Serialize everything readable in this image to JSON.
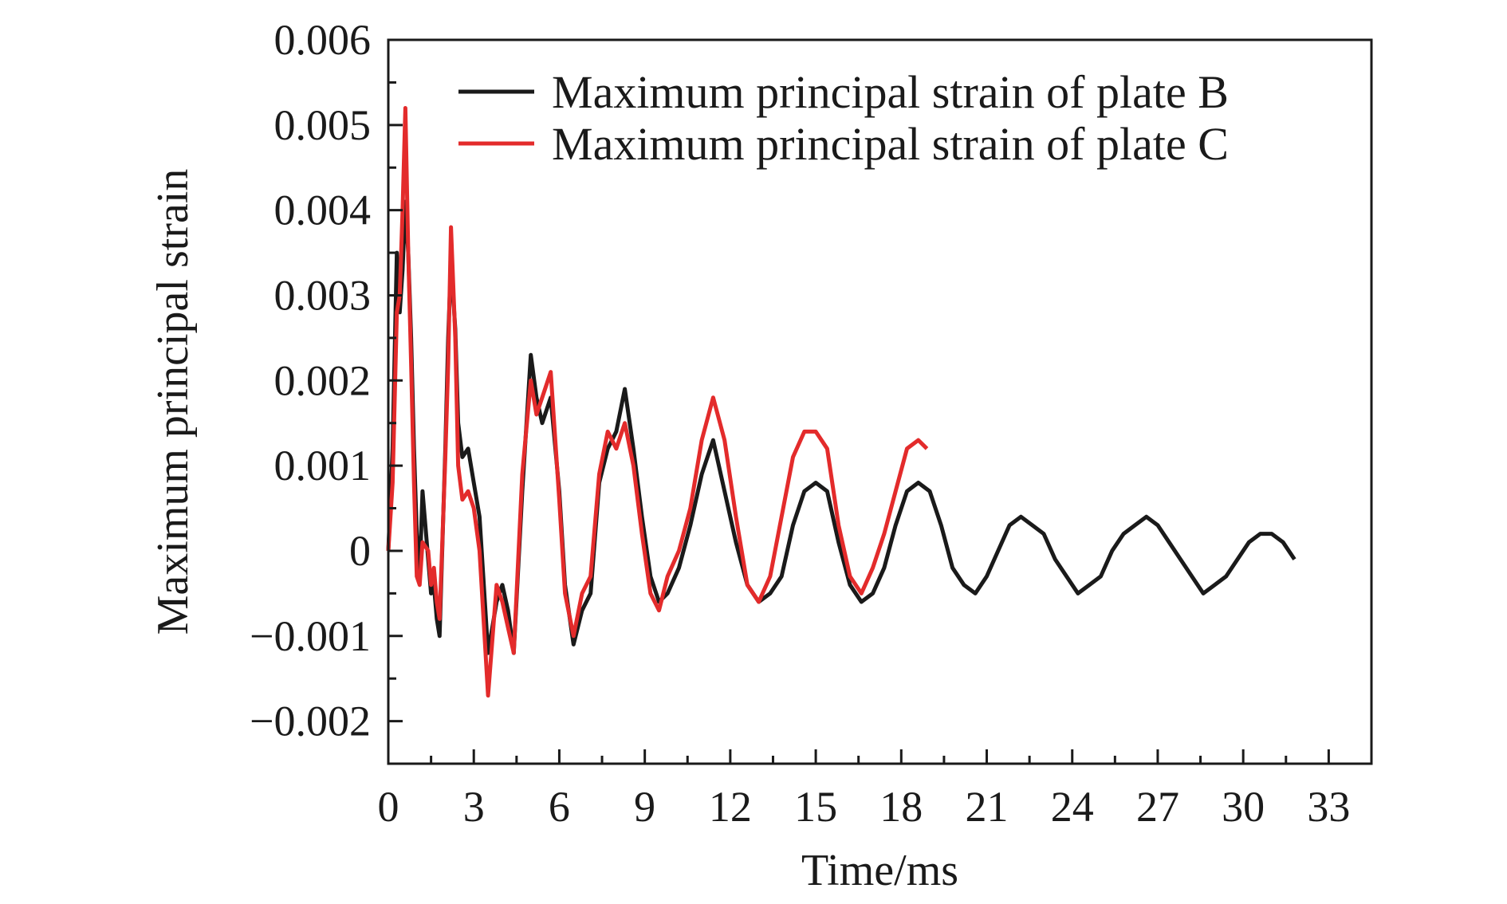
{
  "chart_data": {
    "type": "line",
    "title": "",
    "xlabel": "Time/ms",
    "ylabel": "Maximum principal strain",
    "xlim": [
      0,
      33
    ],
    "ylim": [
      -0.0025,
      0.006
    ],
    "xticks": [
      0,
      3,
      6,
      9,
      12,
      15,
      18,
      21,
      24,
      27,
      30,
      33
    ],
    "xtick_labels": [
      "0",
      "3",
      "6",
      "9",
      "12",
      "15",
      "18",
      "21",
      "24",
      "27",
      "30",
      "33"
    ],
    "yticks": [
      -0.002,
      -0.001,
      0,
      0.001,
      0.002,
      0.003,
      0.004,
      0.005,
      0.006
    ],
    "ytick_labels": [
      "−0.002",
      "−0.001",
      "0",
      "0.001",
      "0.002",
      "0.003",
      "0.004",
      "0.005",
      "0.006"
    ],
    "grid": false,
    "legend_position": "top-right",
    "series": [
      {
        "name": "Maximum principal strain of plate B",
        "color": "#1a1a1a",
        "x": [
          0,
          0.15,
          0.3,
          0.4,
          0.5,
          0.6,
          0.7,
          0.8,
          0.9,
          1.0,
          1.1,
          1.2,
          1.4,
          1.5,
          1.6,
          1.7,
          1.8,
          2.0,
          2.1,
          2.2,
          2.35,
          2.45,
          2.6,
          2.8,
          3.0,
          3.2,
          3.5,
          3.8,
          4.0,
          4.2,
          4.4,
          4.7,
          5.0,
          5.2,
          5.4,
          5.7,
          6.0,
          6.2,
          6.5,
          6.8,
          7.1,
          7.4,
          7.7,
          8.0,
          8.3,
          8.6,
          8.9,
          9.2,
          9.5,
          9.8,
          10.2,
          10.6,
          11.0,
          11.4,
          11.8,
          12.2,
          12.6,
          13.0,
          13.4,
          13.8,
          14.2,
          14.6,
          15.0,
          15.4,
          15.8,
          16.2,
          16.6,
          17.0,
          17.4,
          17.8,
          18.2,
          18.6,
          19.0,
          19.4,
          19.8,
          20.2,
          20.6,
          21.0,
          21.4,
          21.8,
          22.2,
          22.6,
          23.0,
          23.4,
          23.8,
          24.2,
          24.6,
          25.0,
          25.4,
          25.8,
          26.2,
          26.6,
          27.0,
          27.4,
          27.8,
          28.2,
          28.6,
          29.0,
          29.4,
          29.8,
          30.2,
          30.6,
          31.0,
          31.4,
          31.8
        ],
        "y": [
          0,
          0.0012,
          0.0035,
          0.0028,
          0.0033,
          0.0041,
          0.0035,
          0.0025,
          0.0012,
          0.0002,
          -0.0003,
          0.0007,
          -0.0001,
          -0.0005,
          -0.0004,
          -0.0008,
          -0.001,
          0.0012,
          0.0025,
          0.0034,
          0.0026,
          0.0015,
          0.0011,
          0.0012,
          0.0008,
          0.0004,
          -0.0012,
          -0.0006,
          -0.0004,
          -0.0007,
          -0.0012,
          0.0007,
          0.0023,
          0.0018,
          0.0015,
          0.0018,
          0.0007,
          -0.0004,
          -0.0011,
          -0.0007,
          -0.0005,
          0.0008,
          0.0012,
          0.0014,
          0.0019,
          0.0012,
          0.0004,
          -0.0003,
          -0.0006,
          -0.0005,
          -0.0002,
          0.0003,
          0.0009,
          0.0013,
          0.0007,
          0.0001,
          -0.0004,
          -0.0006,
          -0.0005,
          -0.0003,
          0.0003,
          0.0007,
          0.0008,
          0.0007,
          0.0001,
          -0.0004,
          -0.0006,
          -0.0005,
          -0.0002,
          0.0003,
          0.0007,
          0.0008,
          0.0007,
          0.0003,
          -0.0002,
          -0.0004,
          -0.0005,
          -0.0003,
          0.0,
          0.0003,
          0.0004,
          0.0003,
          0.0002,
          -0.0001,
          -0.0003,
          -0.0005,
          -0.0004,
          -0.0003,
          0.0,
          0.0002,
          0.0003,
          0.0004,
          0.0003,
          0.0001,
          -0.0001,
          -0.0003,
          -0.0005,
          -0.0004,
          -0.0003,
          -0.0001,
          0.0001,
          0.0002,
          0.0002,
          0.0001,
          -0.0001
        ]
      },
      {
        "name": "Maximum principal strain of plate C",
        "color": "#e32b2b",
        "x": [
          0,
          0.15,
          0.3,
          0.4,
          0.5,
          0.6,
          0.7,
          0.8,
          0.9,
          1.0,
          1.1,
          1.2,
          1.4,
          1.5,
          1.6,
          1.7,
          1.8,
          2.0,
          2.1,
          2.2,
          2.35,
          2.45,
          2.6,
          2.8,
          3.0,
          3.2,
          3.5,
          3.8,
          4.0,
          4.2,
          4.4,
          4.7,
          5.0,
          5.2,
          5.4,
          5.7,
          6.0,
          6.2,
          6.5,
          6.8,
          7.1,
          7.4,
          7.7,
          8.0,
          8.3,
          8.6,
          8.9,
          9.2,
          9.5,
          9.8,
          10.2,
          10.6,
          11.0,
          11.4,
          11.8,
          12.2,
          12.6,
          13.0,
          13.4,
          13.8,
          14.2,
          14.6,
          15.0,
          15.4,
          15.8,
          16.2,
          16.6,
          17.0,
          17.4,
          17.8,
          18.2,
          18.6,
          18.9
        ],
        "y": [
          0,
          0.0008,
          0.0028,
          0.003,
          0.004,
          0.0052,
          0.0035,
          0.0022,
          0.0008,
          -0.0003,
          -0.0004,
          0.0001,
          0.0,
          -0.0004,
          -0.0002,
          -0.0006,
          -0.0008,
          0.0011,
          0.0022,
          0.0038,
          0.0025,
          0.001,
          0.0006,
          0.0007,
          0.0005,
          0.0,
          -0.0017,
          -0.0004,
          -0.0006,
          -0.0009,
          -0.0012,
          0.0009,
          0.002,
          0.0016,
          0.0018,
          0.0021,
          0.0006,
          -0.0005,
          -0.001,
          -0.0005,
          -0.0003,
          0.0009,
          0.0014,
          0.0012,
          0.0015,
          0.001,
          0.0002,
          -0.0005,
          -0.0007,
          -0.0003,
          0.0,
          0.0005,
          0.0013,
          0.0018,
          0.0013,
          0.0004,
          -0.0004,
          -0.0006,
          -0.0003,
          0.0004,
          0.0011,
          0.0014,
          0.0014,
          0.0012,
          0.0003,
          -0.0003,
          -0.0005,
          -0.0002,
          0.0002,
          0.0007,
          0.0012,
          0.0013,
          0.0012
        ]
      }
    ]
  }
}
